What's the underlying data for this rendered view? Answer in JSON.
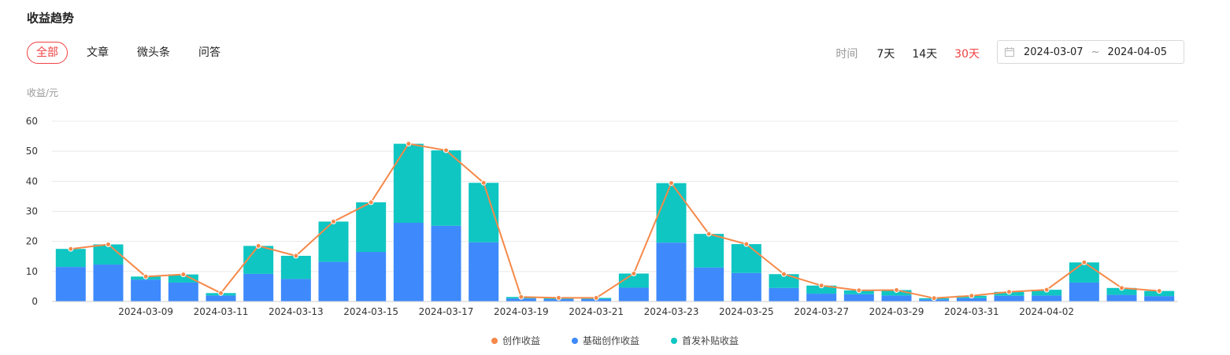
{
  "header": {
    "title": "收益趋势"
  },
  "tabs": [
    {
      "label": "全部",
      "active": true
    },
    {
      "label": "文章",
      "active": false
    },
    {
      "label": "微头条",
      "active": false
    },
    {
      "label": "问答",
      "active": false
    }
  ],
  "time": {
    "label": "时间",
    "options": [
      {
        "label": "7天",
        "active": false
      },
      {
        "label": "14天",
        "active": false
      },
      {
        "label": "30天",
        "active": true
      }
    ]
  },
  "date_range": {
    "start": "2024-03-07",
    "separator": "~",
    "end": "2024-04-05",
    "icon": "calendar-icon"
  },
  "colors": {
    "accent": "#f04142",
    "line": "#f5894a",
    "base": "#3e8afc",
    "bonus": "#0fc6c2"
  },
  "chart_data": {
    "type": "bar",
    "ylabel": "收益/元",
    "ylim": [
      0,
      60
    ],
    "yticks": [
      0,
      10,
      20,
      30,
      40,
      50,
      60
    ],
    "x_tick_labels": [
      "2024-03-09",
      "2024-03-11",
      "2024-03-13",
      "2024-03-15",
      "2024-03-17",
      "2024-03-19",
      "2024-03-21",
      "2024-03-23",
      "2024-03-25",
      "2024-03-27",
      "2024-03-29",
      "2024-03-31",
      "2024-04-02"
    ],
    "categories": [
      "2024-03-07",
      "2024-03-08",
      "2024-03-09",
      "2024-03-10",
      "2024-03-11",
      "2024-03-12",
      "2024-03-13",
      "2024-03-14",
      "2024-03-15",
      "2024-03-16",
      "2024-03-17",
      "2024-03-18",
      "2024-03-19",
      "2024-03-20",
      "2024-03-21",
      "2024-03-22",
      "2024-03-23",
      "2024-03-24",
      "2024-03-25",
      "2024-03-26",
      "2024-03-27",
      "2024-03-28",
      "2024-03-29",
      "2024-03-30",
      "2024-03-31",
      "2024-04-01",
      "2024-04-02",
      "2024-04-03",
      "2024-04-04",
      "2024-04-05"
    ],
    "series": [
      {
        "name": "创作收益",
        "type": "line",
        "values": [
          17.5,
          19.0,
          8.3,
          9.0,
          2.8,
          18.5,
          15.2,
          26.6,
          33.0,
          52.5,
          50.3,
          39.5,
          1.5,
          1.2,
          1.2,
          9.3,
          39.4,
          22.5,
          19.1,
          9.1,
          5.3,
          3.7,
          3.8,
          1.1,
          1.9,
          3.2,
          3.9,
          13.0,
          4.5,
          3.5
        ]
      },
      {
        "name": "基础创作收益",
        "type": "bar",
        "values": [
          11.5,
          12.3,
          7.3,
          6.3,
          2.0,
          9.2,
          7.5,
          13.2,
          16.5,
          26.2,
          25.2,
          19.7,
          1.0,
          0.8,
          0.8,
          4.6,
          19.6,
          11.3,
          9.5,
          4.5,
          2.6,
          2.4,
          2.0,
          0.7,
          1.1,
          1.9,
          2.0,
          6.3,
          2.2,
          1.8
        ]
      },
      {
        "name": "首发补贴收益",
        "type": "bar",
        "values": [
          6.0,
          6.7,
          1.0,
          2.7,
          0.8,
          9.3,
          7.7,
          13.4,
          16.5,
          26.3,
          25.1,
          19.8,
          0.5,
          0.4,
          0.4,
          4.7,
          19.8,
          11.2,
          9.6,
          4.6,
          2.7,
          1.3,
          1.8,
          0.4,
          0.8,
          1.3,
          1.9,
          6.7,
          2.3,
          1.7
        ]
      }
    ],
    "legend": [
      "创作收益",
      "基础创作收益",
      "首发补贴收益"
    ],
    "legend_position": "bottom",
    "grid": true
  }
}
